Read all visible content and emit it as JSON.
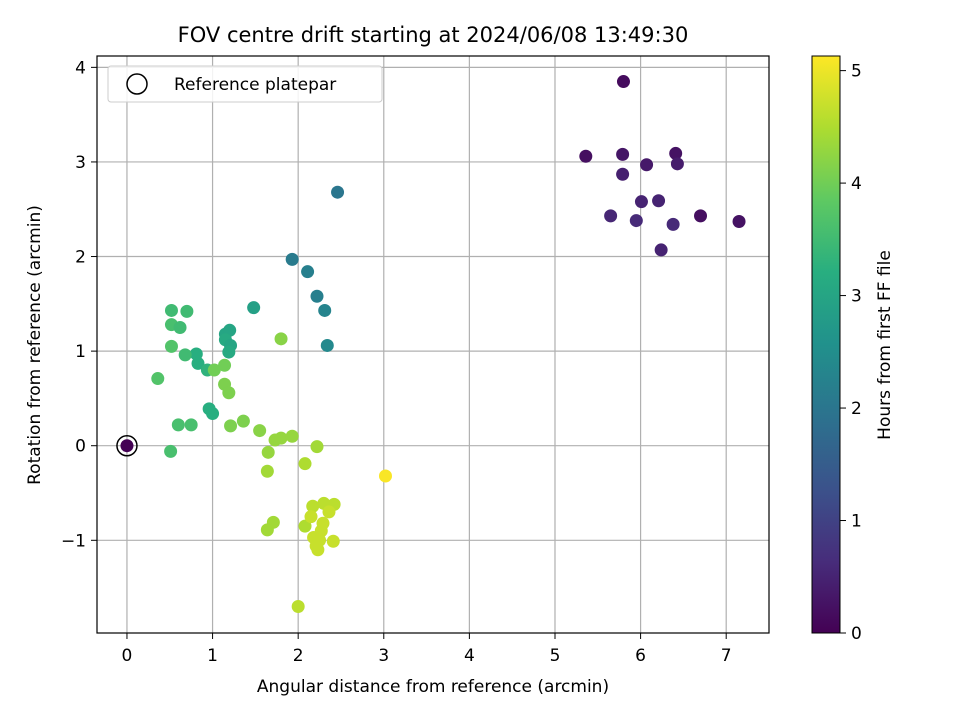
{
  "chart_data": {
    "type": "scatter",
    "title": "FOV centre drift starting at 2024/06/08 13:49:30",
    "xlabel": "Angular distance from reference (arcmin)",
    "ylabel": "Rotation from reference (arcmin)",
    "xlim": [
      -0.35,
      7.5
    ],
    "ylim": [
      -1.98,
      4.12
    ],
    "xticks": [
      "0",
      "1",
      "2",
      "3",
      "4",
      "5",
      "6",
      "7"
    ],
    "yticks": [
      "−1",
      "0",
      "1",
      "2",
      "3",
      "4"
    ],
    "grid": true,
    "legend": {
      "position": "top-left",
      "label": "Reference platepar"
    },
    "colorbar": {
      "label": "Hours from first FF file",
      "range": [
        0,
        5.13
      ],
      "ticks": [
        "0",
        "1",
        "2",
        "3",
        "4",
        "5"
      ],
      "colormap": "viridis"
    },
    "reference_point": {
      "x": 0,
      "y": 0,
      "hours": 0
    },
    "points": [
      {
        "x": 5.8,
        "y": 3.85,
        "h": 0.15
      },
      {
        "x": 5.36,
        "y": 3.06,
        "h": 0.2
      },
      {
        "x": 5.79,
        "y": 3.08,
        "h": 0.3
      },
      {
        "x": 6.41,
        "y": 3.09,
        "h": 0.25
      },
      {
        "x": 6.07,
        "y": 2.97,
        "h": 0.35
      },
      {
        "x": 6.43,
        "y": 2.98,
        "h": 0.4
      },
      {
        "x": 5.79,
        "y": 2.87,
        "h": 0.45
      },
      {
        "x": 6.01,
        "y": 2.58,
        "h": 0.5
      },
      {
        "x": 6.21,
        "y": 2.59,
        "h": 0.5
      },
      {
        "x": 5.65,
        "y": 2.43,
        "h": 0.55
      },
      {
        "x": 5.95,
        "y": 2.38,
        "h": 0.6
      },
      {
        "x": 6.38,
        "y": 2.34,
        "h": 0.6
      },
      {
        "x": 6.7,
        "y": 2.43,
        "h": 0.2
      },
      {
        "x": 7.15,
        "y": 2.37,
        "h": 0.25
      },
      {
        "x": 6.24,
        "y": 2.07,
        "h": 0.5
      },
      {
        "x": 2.46,
        "y": 2.68,
        "h": 2.0
      },
      {
        "x": 1.93,
        "y": 1.97,
        "h": 2.1
      },
      {
        "x": 2.11,
        "y": 1.84,
        "h": 2.2
      },
      {
        "x": 2.22,
        "y": 1.58,
        "h": 2.2
      },
      {
        "x": 2.31,
        "y": 1.43,
        "h": 2.3
      },
      {
        "x": 2.34,
        "y": 1.06,
        "h": 2.4
      },
      {
        "x": 1.48,
        "y": 1.46,
        "h": 2.9
      },
      {
        "x": 1.15,
        "y": 1.18,
        "h": 3.0
      },
      {
        "x": 1.2,
        "y": 1.22,
        "h": 3.0
      },
      {
        "x": 1.15,
        "y": 1.12,
        "h": 3.1
      },
      {
        "x": 1.21,
        "y": 1.06,
        "h": 3.0
      },
      {
        "x": 1.19,
        "y": 0.99,
        "h": 3.1
      },
      {
        "x": 0.81,
        "y": 0.97,
        "h": 3.2
      },
      {
        "x": 0.83,
        "y": 0.87,
        "h": 3.2
      },
      {
        "x": 0.94,
        "y": 0.8,
        "h": 3.3
      },
      {
        "x": 0.96,
        "y": 0.39,
        "h": 3.2
      },
      {
        "x": 1.0,
        "y": 0.34,
        "h": 3.2
      },
      {
        "x": 0.52,
        "y": 1.43,
        "h": 3.5
      },
      {
        "x": 0.7,
        "y": 1.42,
        "h": 3.5
      },
      {
        "x": 0.52,
        "y": 1.28,
        "h": 3.6
      },
      {
        "x": 0.62,
        "y": 1.25,
        "h": 3.5
      },
      {
        "x": 0.52,
        "y": 1.05,
        "h": 3.7
      },
      {
        "x": 0.68,
        "y": 0.96,
        "h": 3.5
      },
      {
        "x": 0.36,
        "y": 0.71,
        "h": 3.7
      },
      {
        "x": 0.6,
        "y": 0.22,
        "h": 3.6
      },
      {
        "x": 0.75,
        "y": 0.22,
        "h": 3.6
      },
      {
        "x": 0.51,
        "y": -0.06,
        "h": 3.6
      },
      {
        "x": 1.02,
        "y": 0.8,
        "h": 4.0
      },
      {
        "x": 1.14,
        "y": 0.85,
        "h": 4.0
      },
      {
        "x": 1.14,
        "y": 0.65,
        "h": 4.1
      },
      {
        "x": 1.19,
        "y": 0.56,
        "h": 4.1
      },
      {
        "x": 1.21,
        "y": 0.21,
        "h": 4.1
      },
      {
        "x": 1.36,
        "y": 0.26,
        "h": 4.1
      },
      {
        "x": 1.8,
        "y": 1.13,
        "h": 4.2
      },
      {
        "x": 1.55,
        "y": 0.16,
        "h": 4.2
      },
      {
        "x": 1.73,
        "y": 0.06,
        "h": 4.3
      },
      {
        "x": 1.8,
        "y": 0.08,
        "h": 4.3
      },
      {
        "x": 1.93,
        "y": 0.1,
        "h": 4.3
      },
      {
        "x": 1.65,
        "y": -0.07,
        "h": 4.3
      },
      {
        "x": 1.64,
        "y": -0.27,
        "h": 4.4
      },
      {
        "x": 2.22,
        "y": -0.01,
        "h": 4.4
      },
      {
        "x": 2.08,
        "y": -0.19,
        "h": 4.5
      },
      {
        "x": 1.71,
        "y": -0.81,
        "h": 4.4
      },
      {
        "x": 1.64,
        "y": -0.89,
        "h": 4.4
      },
      {
        "x": 2.08,
        "y": -0.85,
        "h": 4.5
      },
      {
        "x": 2.17,
        "y": -0.64,
        "h": 4.6
      },
      {
        "x": 2.3,
        "y": -0.61,
        "h": 4.6
      },
      {
        "x": 2.42,
        "y": -0.62,
        "h": 4.6
      },
      {
        "x": 2.36,
        "y": -0.7,
        "h": 4.7
      },
      {
        "x": 2.15,
        "y": -0.75,
        "h": 4.7
      },
      {
        "x": 2.29,
        "y": -0.82,
        "h": 4.7
      },
      {
        "x": 2.27,
        "y": -0.9,
        "h": 4.7
      },
      {
        "x": 2.18,
        "y": -0.97,
        "h": 4.7
      },
      {
        "x": 2.25,
        "y": -1.0,
        "h": 4.7
      },
      {
        "x": 2.41,
        "y": -1.01,
        "h": 4.7
      },
      {
        "x": 2.21,
        "y": -1.06,
        "h": 4.7
      },
      {
        "x": 2.23,
        "y": -1.1,
        "h": 4.7
      },
      {
        "x": 2.0,
        "y": -1.7,
        "h": 4.6
      },
      {
        "x": 3.02,
        "y": -0.32,
        "h": 5.1
      }
    ]
  }
}
